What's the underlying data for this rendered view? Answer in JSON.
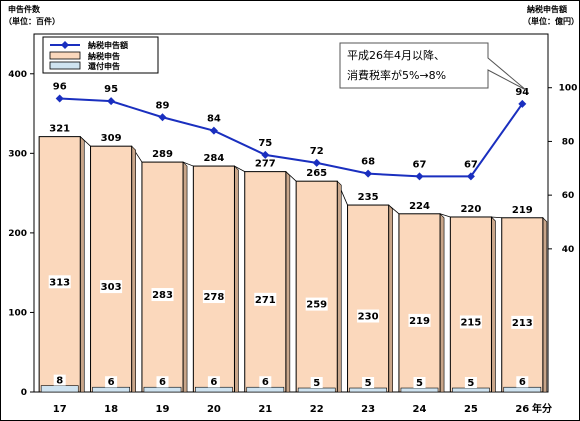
{
  "chart_data": {
    "type": "bar",
    "categories": [
      "17",
      "18",
      "19",
      "20",
      "21",
      "22",
      "23",
      "24",
      "25",
      "26"
    ],
    "x_unit_label": "年分",
    "left_axis": {
      "title": "申告件数",
      "unit": "（単位：百件）",
      "range": [
        0,
        450
      ],
      "ticks": [
        0,
        100,
        200,
        300,
        400
      ]
    },
    "right_axis": {
      "title": "納税申告額",
      "unit": "（単位：億円）",
      "range": [
        -13.3,
        120
      ],
      "ticks": [
        40,
        60,
        80,
        100
      ]
    },
    "series": [
      {
        "name": "納税申告",
        "type": "bar",
        "axis": "left",
        "color": "#fbd8bc",
        "values": [
          321,
          309,
          289,
          284,
          277,
          265,
          235,
          224,
          220,
          219
        ]
      },
      {
        "name": "還付申告",
        "type": "bar",
        "axis": "left",
        "color": "#cfe3f0",
        "values": [
          8,
          6,
          6,
          6,
          6,
          5,
          5,
          5,
          5,
          6
        ]
      },
      {
        "name": "納税申告額",
        "type": "line",
        "axis": "right",
        "color": "#1a2fbf",
        "values": [
          96,
          95,
          89,
          84,
          75,
          72,
          68,
          67,
          67,
          94
        ]
      }
    ],
    "inner_labels": [
      313,
      303,
      283,
      278,
      271,
      259,
      230,
      219,
      215,
      213
    ],
    "annotation": {
      "lines": [
        "平成26年4月以降、",
        "消費税率が5%→8%"
      ]
    },
    "legend_position": "top-left",
    "grid": false
  }
}
